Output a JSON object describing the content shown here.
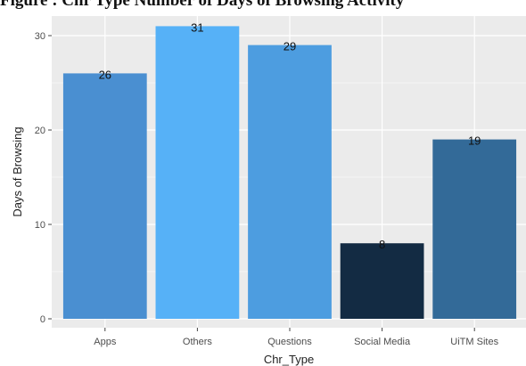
{
  "caption": "Figure : Chr Type    Number of Days of Browsing Activity",
  "chart_data": {
    "type": "bar",
    "title": "",
    "xlabel": "Chr_Type",
    "ylabel": "Days of Browsing",
    "categories": [
      "Apps",
      "Others",
      "Questions",
      "Social Media",
      "UiTM Sites"
    ],
    "values": [
      26,
      31,
      29,
      8,
      19
    ],
    "data_labels": [
      "26",
      "31",
      "29",
      "8",
      "19"
    ],
    "bar_colors": [
      "#4a8fd1",
      "#56b1f7",
      "#4d9de0",
      "#132b43",
      "#336a98"
    ],
    "ylim": [
      0,
      32.5
    ],
    "yticks": [
      0,
      10,
      20,
      30
    ],
    "grid": true,
    "legend": "none",
    "panel_background": "#ebebeb",
    "grid_color": "#ffffff"
  }
}
